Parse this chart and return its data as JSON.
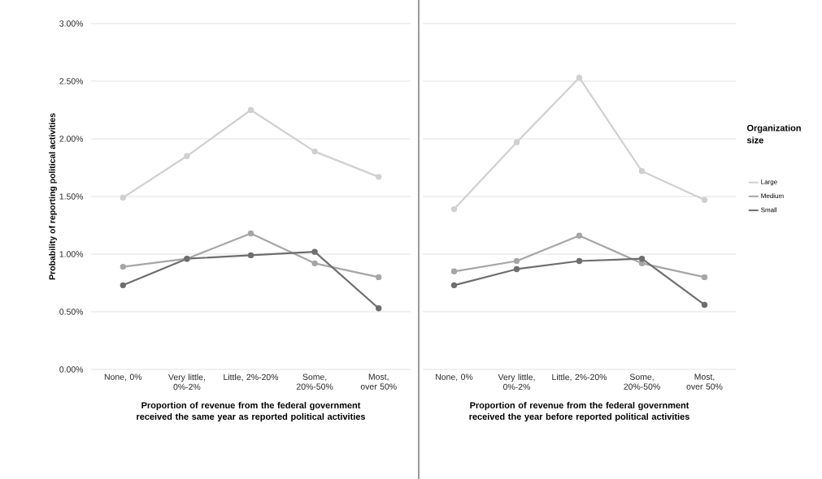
{
  "chart_data": [
    {
      "type": "line",
      "ylabel": "Probability of reporting political activities",
      "xlabel": "Proportion of revenue from the federal government received the same year as reported political activities",
      "categories": [
        "None, 0%",
        "Very little, 0%-2%",
        "Little, 2%-20%",
        "Some, 20%-50%",
        "Most, over 50%"
      ],
      "ylim": [
        0,
        3
      ],
      "yticks": [
        {
          "value": 0,
          "label": "0.00%"
        },
        {
          "value": 0.5,
          "label": "0.50%"
        },
        {
          "value": 1,
          "label": "1.00%"
        },
        {
          "value": 1.5,
          "label": "1.50%"
        },
        {
          "value": 2,
          "label": "2.00%"
        },
        {
          "value": 2.5,
          "label": "2.50%"
        },
        {
          "value": 3,
          "label": "3.00%"
        }
      ],
      "grid": "y",
      "marker": "circle",
      "legend": false,
      "series": [
        {
          "color": "#d0d0d0",
          "values": [
            1.49,
            1.85,
            2.25,
            1.89,
            1.67
          ]
        },
        {
          "color": "#a6a6a6",
          "values": [
            0.89,
            0.96,
            1.18,
            0.92,
            0.8
          ]
        },
        {
          "color": "#6e6e6e",
          "values": [
            0.73,
            0.96,
            0.99,
            1.02,
            0.53
          ]
        }
      ]
    },
    {
      "type": "line",
      "xlabel": "Proportion of revenue from the federal government received the year before reported political activities",
      "legend_title": "Organization size",
      "categories": [
        "None, 0%",
        "Very little, 0%-2%",
        "Little, 2%-20%",
        "Some, 20%-50%",
        "Most, over 50%"
      ],
      "ylim": [
        0,
        3
      ],
      "tick_labels": "x",
      "grid": "y",
      "marker": "circle",
      "legend": "right",
      "series": [
        {
          "name": "Large",
          "color": "#d0d0d0",
          "values": [
            1.39,
            1.97,
            2.53,
            1.72,
            1.47
          ]
        },
        {
          "name": "Medium",
          "color": "#a6a6a6",
          "values": [
            0.85,
            0.94,
            1.16,
            0.92,
            0.8
          ]
        },
        {
          "name": "Small",
          "color": "#6e6e6e",
          "values": [
            0.73,
            0.87,
            0.94,
            0.96,
            0.56
          ]
        }
      ]
    }
  ]
}
